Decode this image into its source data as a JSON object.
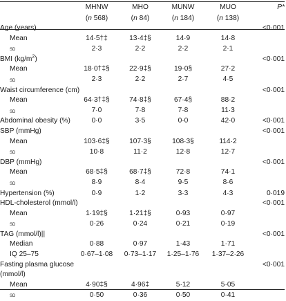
{
  "header": {
    "groups": [
      "MHNW",
      "MHO",
      "MUNW",
      "MUO",
      "P*"
    ],
    "n_prefix": "n",
    "n_values": [
      "568",
      "84",
      "184",
      "138"
    ]
  },
  "rows": [
    {
      "type": "var",
      "label": "Age (years)",
      "p": "<0·001"
    },
    {
      "type": "stat",
      "label": "Mean",
      "values": [
        "14·5†‡",
        "13·4‡§",
        "14·9",
        "14·8"
      ]
    },
    {
      "type": "stat",
      "label": "sd",
      "values": [
        "2·3",
        "2·2",
        "2·2",
        "2·1"
      ]
    },
    {
      "type": "var",
      "label": "BMI (kg/m",
      "sup": "2",
      "label_after": ")",
      "p": "<0·001"
    },
    {
      "type": "stat",
      "label": "Mean",
      "values": [
        "18·0†‡§",
        "22·9‡§",
        "19·0§",
        "27·2"
      ]
    },
    {
      "type": "stat",
      "label": "sd",
      "values": [
        "2·3",
        "2·2",
        "2·7",
        "4·5"
      ]
    },
    {
      "type": "var",
      "label": "Waist circumference (cm)",
      "p": "<0·001"
    },
    {
      "type": "stat",
      "label": "Mean",
      "values": [
        "64·3†‡§",
        "74·8‡§",
        "67·4§",
        "88·2"
      ]
    },
    {
      "type": "stat",
      "label": "sd",
      "values": [
        "7·0",
        "7·8",
        "7·8",
        "11·3"
      ]
    },
    {
      "type": "varvals",
      "label": "Abdominal obesity (%)",
      "values": [
        "0·0",
        "3·5",
        "0·0",
        "42·0"
      ],
      "p": "<0·001"
    },
    {
      "type": "var",
      "label": "SBP (mmHg)",
      "p": "<0·001"
    },
    {
      "type": "stat",
      "label": "Mean",
      "values": [
        "103·6‡§",
        "107·3§",
        "108·3§",
        "114·2"
      ]
    },
    {
      "type": "stat",
      "label": "sd",
      "values": [
        "10·8",
        "11·2",
        "12·8",
        "12·7"
      ]
    },
    {
      "type": "var",
      "label": "DBP (mmHg)",
      "p": "<0·001"
    },
    {
      "type": "stat",
      "label": "Mean",
      "values": [
        "68·5‡§",
        "68·7‡§",
        "72·8",
        "74·1"
      ]
    },
    {
      "type": "stat",
      "label": "sd",
      "values": [
        "8·9",
        "8·4",
        "9·5",
        "8·6"
      ]
    },
    {
      "type": "varvals",
      "label": "Hypertension (%)",
      "values": [
        "0·9",
        "1·2",
        "3·3",
        "4·3"
      ],
      "p": "0·019"
    },
    {
      "type": "var",
      "label": "HDL-cholesterol (mmol/l)",
      "p": "<0·001"
    },
    {
      "type": "stat",
      "label": "Mean",
      "values": [
        "1·19‡§",
        "1·21‡§",
        "0·93",
        "0·97"
      ]
    },
    {
      "type": "stat",
      "label": "sd",
      "values": [
        "0·26",
        "0·24",
        "0·21",
        "0·19"
      ]
    },
    {
      "type": "var",
      "label": "TAG (mmol/l)||",
      "p": "<0·001"
    },
    {
      "type": "stat",
      "label": "Median",
      "values": [
        "0·88",
        "0·97",
        "1·43",
        "1·71"
      ]
    },
    {
      "type": "stat",
      "label": "IQ 25–75",
      "values": [
        "0·67–1·08",
        "0·73–1·17",
        "1·25–1·76",
        "1·37–2·26"
      ]
    },
    {
      "type": "var",
      "label": "Fasting plasma glucose",
      "p": "<0·001"
    },
    {
      "type": "var",
      "label": "(mmol/l)",
      "p": ""
    },
    {
      "type": "stat",
      "label": "Mean",
      "values": [
        "4·90‡§",
        "4·96‡",
        "5·12",
        "5·05"
      ]
    },
    {
      "type": "stat",
      "label": "sd",
      "values": [
        "0·50",
        "0·36",
        "0·50",
        "0·41"
      ]
    }
  ]
}
